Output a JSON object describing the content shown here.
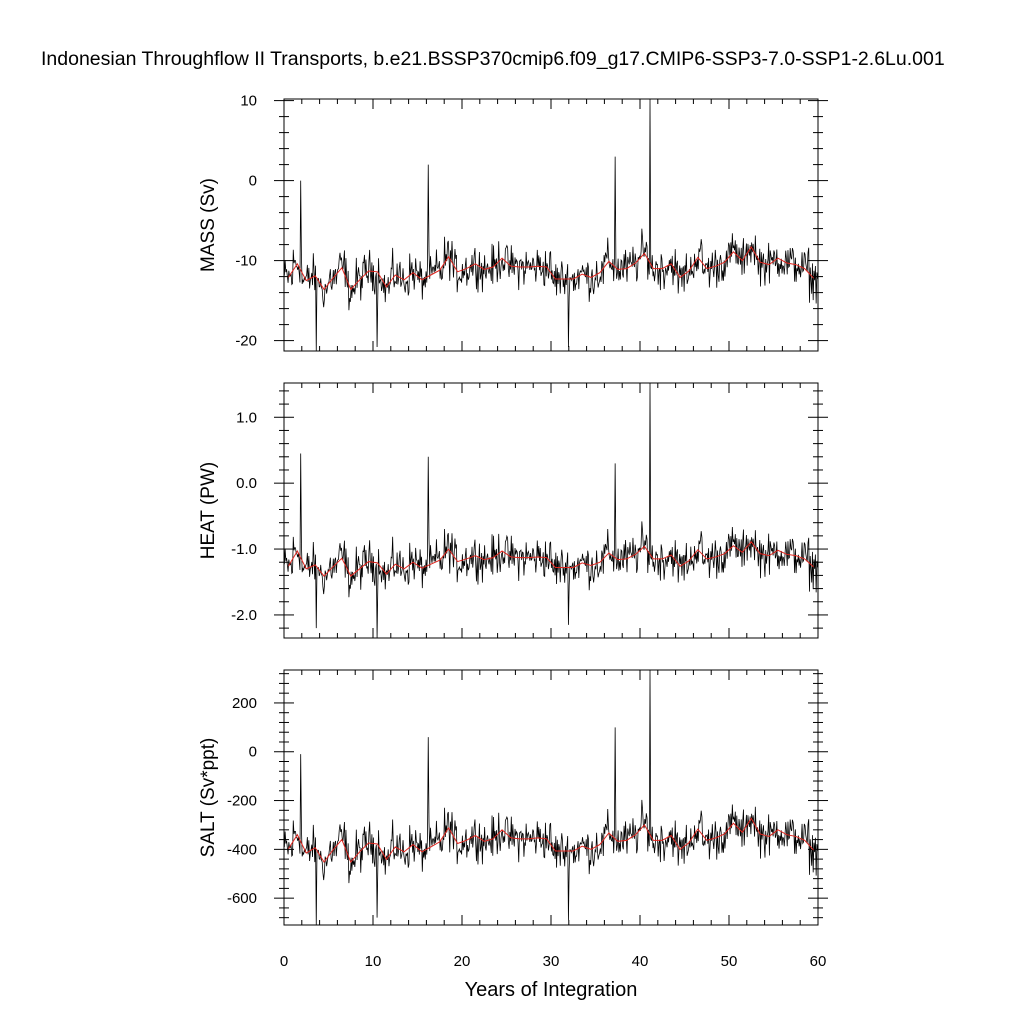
{
  "title": "Indonesian Throughflow II Transports, b.e21.BSSP370cmip6.f09_g17.CMIP6-SSP3-7.0-SSP1-2.6Lu.001",
  "chart_data": {
    "type": "line",
    "xlabel": "Years of Integration",
    "xlim": [
      0,
      60
    ],
    "xticks": [
      "0",
      "10",
      "20",
      "30",
      "40",
      "50",
      "60"
    ],
    "grid": false,
    "panels": [
      {
        "ylabel": "MASS (Sv)",
        "ylim": [
          -21.3,
          10.2
        ],
        "yticks": [
          10,
          0,
          -10,
          -20
        ],
        "ytick_labels": [
          "10",
          "0",
          "-10",
          "-20"
        ],
        "annual_mean": [
          -12.1,
          -10.4,
          -12.5,
          -11.9,
          -13.6,
          -12.2,
          -10.9,
          -13.6,
          -12.4,
          -11.3,
          -11.4,
          -13.3,
          -11.8,
          -12.4,
          -11.5,
          -12.4,
          -11.8,
          -11.2,
          -9.5,
          -11.4,
          -11.0,
          -10.4,
          -11.1,
          -10.8,
          -9.7,
          -10.7,
          -10.8,
          -10.8,
          -10.7,
          -10.8,
          -12.3,
          -12.3,
          -12.3,
          -11.7,
          -12.1,
          -11.5,
          -10.1,
          -11.1,
          -11.0,
          -10.3,
          -9.1,
          -11.0,
          -11.0,
          -10.4,
          -12.1,
          -11.3,
          -9.6,
          -11.0,
          -10.7,
          -10.2,
          -8.9,
          -10.0,
          -8.3,
          -10.2,
          -10.5,
          -9.7,
          -10.3,
          -10.5,
          -11.0,
          -12.2
        ],
        "spikes": [
          {
            "x": 1.8,
            "y": 0.0
          },
          {
            "x": 16.2,
            "y": 2.0
          },
          {
            "x": 37.2,
            "y": 3.0
          },
          {
            "x": 41.1,
            "y": 10.2
          },
          {
            "x": 3.6,
            "y": -21.3
          },
          {
            "x": 10.4,
            "y": -20.8
          },
          {
            "x": 31.9,
            "y": -20.8
          }
        ]
      },
      {
        "ylabel": "HEAT (PW)",
        "ylim": [
          -2.35,
          1.52
        ],
        "yticks": [
          1.0,
          0.0,
          -1.0,
          -2.0
        ],
        "ytick_labels": [
          "1.0",
          "0.0",
          "-1.0",
          "-2.0"
        ],
        "annual_mean": [
          -1.26,
          -1.03,
          -1.3,
          -1.24,
          -1.41,
          -1.27,
          -1.14,
          -1.41,
          -1.3,
          -1.19,
          -1.21,
          -1.38,
          -1.23,
          -1.3,
          -1.2,
          -1.29,
          -1.23,
          -1.17,
          -1.0,
          -1.19,
          -1.15,
          -1.1,
          -1.16,
          -1.13,
          -1.03,
          -1.12,
          -1.13,
          -1.13,
          -1.12,
          -1.13,
          -1.28,
          -1.28,
          -1.28,
          -1.21,
          -1.25,
          -1.2,
          -1.06,
          -1.16,
          -1.15,
          -1.08,
          -0.96,
          -1.15,
          -1.15,
          -1.09,
          -1.26,
          -1.18,
          -1.01,
          -1.15,
          -1.12,
          -1.07,
          -0.95,
          -1.05,
          -0.89,
          -1.07,
          -1.1,
          -1.02,
          -1.08,
          -1.1,
          -1.15,
          -1.27
        ],
        "spikes": [
          {
            "x": 1.8,
            "y": 0.45
          },
          {
            "x": 16.2,
            "y": 0.4
          },
          {
            "x": 37.2,
            "y": 0.3
          },
          {
            "x": 41.1,
            "y": 1.52
          },
          {
            "x": 3.6,
            "y": -2.2
          },
          {
            "x": 10.4,
            "y": -2.35
          },
          {
            "x": 31.9,
            "y": -2.15
          }
        ]
      },
      {
        "ylabel": "SALT (Sv*ppt)",
        "ylim": [
          -710,
          335
        ],
        "yticks": [
          200,
          0,
          -200,
          -400,
          -600
        ],
        "ytick_labels": [
          "200",
          "0",
          "-200",
          "-400",
          "-600"
        ],
        "annual_mean": [
          -398,
          -340,
          -415,
          -393,
          -452,
          -403,
          -360,
          -452,
          -410,
          -374,
          -378,
          -441,
          -390,
          -410,
          -380,
          -410,
          -390,
          -369,
          -312,
          -376,
          -363,
          -343,
          -367,
          -357,
          -320,
          -353,
          -357,
          -357,
          -353,
          -357,
          -407,
          -407,
          -407,
          -387,
          -400,
          -380,
          -333,
          -367,
          -363,
          -340,
          -300,
          -363,
          -363,
          -343,
          -400,
          -373,
          -317,
          -363,
          -353,
          -337,
          -293,
          -330,
          -273,
          -337,
          -347,
          -320,
          -340,
          -347,
          -363,
          -403
        ],
        "spikes": [
          {
            "x": 1.8,
            "y": -10
          },
          {
            "x": 16.2,
            "y": 60
          },
          {
            "x": 37.2,
            "y": 100
          },
          {
            "x": 41.1,
            "y": 335
          },
          {
            "x": 3.6,
            "y": -710
          },
          {
            "x": 10.4,
            "y": -680
          },
          {
            "x": 31.9,
            "y": -690
          }
        ]
      }
    ],
    "series": [
      {
        "color": "#000000",
        "style": "monthly",
        "amplitude_fraction": 0.12
      },
      {
        "color": "#e0251e",
        "style": "annual-mean"
      }
    ]
  }
}
